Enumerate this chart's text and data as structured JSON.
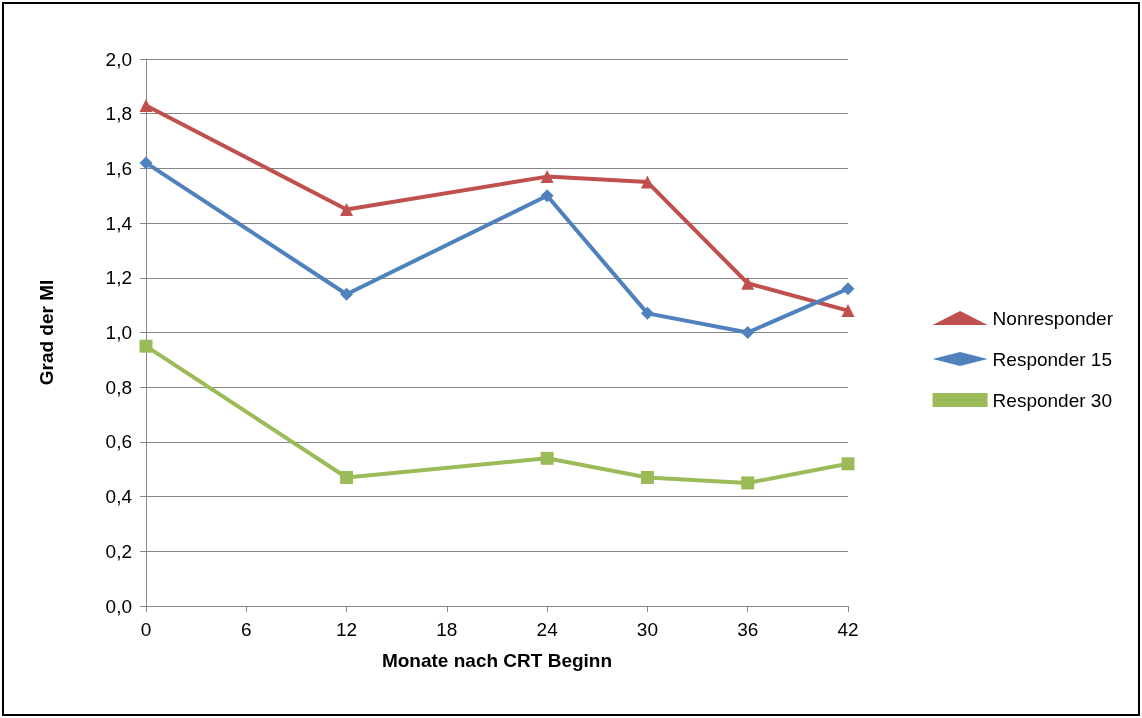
{
  "chart_data": {
    "type": "line",
    "xlabel": "Monate nach CRT Beginn",
    "ylabel": "Grad der MI",
    "x": [
      0,
      12,
      24,
      30,
      36,
      42
    ],
    "xlim": [
      0,
      42
    ],
    "xticks": [
      0,
      6,
      12,
      18,
      24,
      30,
      36,
      42
    ],
    "ylim": [
      0,
      2
    ],
    "yticks": [
      {
        "value": 0,
        "label": "0,0"
      },
      {
        "value": 0.2,
        "label": "0,2"
      },
      {
        "value": 0.4,
        "label": "0,4"
      },
      {
        "value": 0.6,
        "label": "0,6"
      },
      {
        "value": 0.8,
        "label": "0,8"
      },
      {
        "value": 1,
        "label": "1,0"
      },
      {
        "value": 1.2,
        "label": "1,2"
      },
      {
        "value": 1.4,
        "label": "1,4"
      },
      {
        "value": 1.6,
        "label": "1,6"
      },
      {
        "value": 1.8,
        "label": "1,8"
      },
      {
        "value": 2,
        "label": "2,0"
      }
    ],
    "grid": "y",
    "legend": "right",
    "line_style": "solid",
    "series": [
      {
        "name": "Nonresponder",
        "color": "#c0504d",
        "marker": "triangle",
        "values": [
          1.83,
          1.45,
          1.57,
          1.55,
          1.18,
          1.08
        ]
      },
      {
        "name": "Responder 15",
        "color": "#4f81bd",
        "marker": "diamond",
        "values": [
          1.62,
          1.14,
          1.5,
          1.07,
          1.0,
          1.16
        ]
      },
      {
        "name": "Responder 30",
        "color": "#9bbb59",
        "marker": "square",
        "values": [
          0.95,
          0.47,
          0.54,
          0.47,
          0.45,
          0.52
        ]
      }
    ]
  }
}
